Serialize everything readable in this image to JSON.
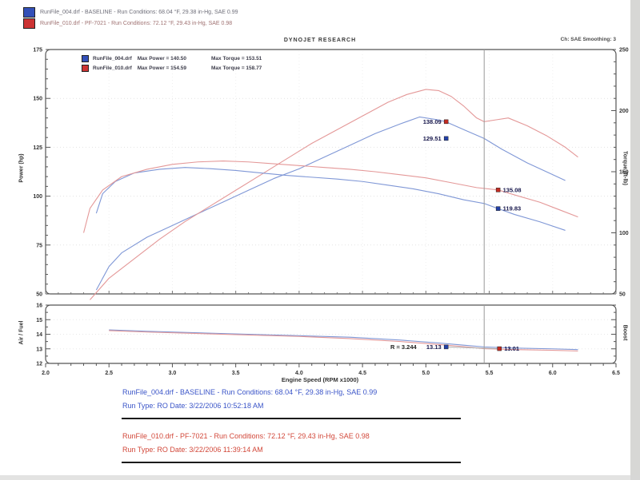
{
  "colors": {
    "blue_text": "#3b55c8",
    "red_text": "#d2483a",
    "blue_line": "#7f97d6",
    "red_line": "#e49898",
    "blue_marker": "#2340a8",
    "red_marker": "#c52b22",
    "cursor": "#999999",
    "frame": "#555555"
  },
  "header": {
    "runs": [
      {
        "swatch": "blue",
        "label": "RunFile_004.drf - BASELINE  -  Run Conditions: 68.04 °F, 29.38 in-Hg, SAE 0.99"
      },
      {
        "swatch": "red",
        "label": "RunFile_010.drf - PF-7021  -  Run Conditions: 72.12 °F, 29.43 in-Hg, SAE 0.98"
      }
    ],
    "smoothing": "Ch: SAE  Smoothing: 3"
  },
  "chart_data": [
    {
      "type": "line",
      "title": "DYNOJET RESEARCH",
      "xlabel": "Engine Speed (RPM x1000)",
      "xlim": [
        2.0,
        6.5
      ],
      "x_ticks": [
        "2.0",
        "2.5",
        "3.0",
        "3.5",
        "4.0",
        "4.5",
        "5.0",
        "5.5",
        "6.0",
        "6.5"
      ],
      "cursor_rpm": 5.46,
      "grid": "dotted",
      "left_axis": {
        "label": "Power (hp)",
        "lim": [
          50,
          175
        ],
        "ticks": [
          175,
          150,
          125,
          100,
          75,
          50
        ]
      },
      "right_axis": {
        "label": "Torque (ft-lb)",
        "lim": [
          50,
          250
        ],
        "ticks": [
          250,
          200,
          150,
          100,
          50
        ]
      },
      "legend": [
        {
          "swatch": "blue",
          "file": "RunFile_004.drf",
          "power": "Max Power = 140.50",
          "torque": "Max Torque = 153.51"
        },
        {
          "swatch": "red",
          "file": "RunFile_010.drf",
          "power": "Max Power = 154.59",
          "torque": "Max Torque = 158.77"
        }
      ],
      "series": [
        {
          "name": "RunFile_004.drf Power",
          "color": "blue",
          "axis": "left",
          "points": [
            [
              2.4,
              52
            ],
            [
              2.5,
              64
            ],
            [
              2.6,
              71
            ],
            [
              2.8,
              79
            ],
            [
              3.0,
              85
            ],
            [
              3.2,
              91
            ],
            [
              3.4,
              97
            ],
            [
              3.6,
              103
            ],
            [
              3.8,
              109
            ],
            [
              4.0,
              114
            ],
            [
              4.2,
              120
            ],
            [
              4.4,
              126
            ],
            [
              4.6,
              132
            ],
            [
              4.8,
              137
            ],
            [
              4.95,
              140.5
            ],
            [
              5.1,
              139
            ],
            [
              5.16,
              138
            ],
            [
              5.3,
              134
            ],
            [
              5.46,
              129.5
            ],
            [
              5.6,
              124
            ],
            [
              5.8,
              117
            ],
            [
              6.0,
              111
            ],
            [
              6.1,
              108
            ]
          ]
        },
        {
          "name": "RunFile_010.drf Power",
          "color": "red",
          "axis": "left",
          "points": [
            [
              2.35,
              47
            ],
            [
              2.5,
              58
            ],
            [
              2.7,
              68
            ],
            [
              2.9,
              78
            ],
            [
              3.1,
              87
            ],
            [
              3.3,
              95
            ],
            [
              3.5,
              103
            ],
            [
              3.7,
              111
            ],
            [
              3.9,
              119
            ],
            [
              4.1,
              127
            ],
            [
              4.3,
              134
            ],
            [
              4.5,
              141
            ],
            [
              4.7,
              148
            ],
            [
              4.85,
              152
            ],
            [
              5.0,
              154.6
            ],
            [
              5.1,
              154
            ],
            [
              5.2,
              151
            ],
            [
              5.3,
              146
            ],
            [
              5.4,
              140
            ],
            [
              5.46,
              138.1
            ],
            [
              5.55,
              139
            ],
            [
              5.65,
              140
            ],
            [
              5.8,
              136
            ],
            [
              5.95,
              131
            ],
            [
              6.1,
              125
            ],
            [
              6.2,
              120
            ]
          ]
        },
        {
          "name": "RunFile_004.drf Torque",
          "color": "blue",
          "axis": "right",
          "points": [
            [
              2.4,
              116
            ],
            [
              2.45,
              132
            ],
            [
              2.55,
              142
            ],
            [
              2.7,
              149
            ],
            [
              2.9,
              152
            ],
            [
              3.1,
              153.5
            ],
            [
              3.3,
              152.5
            ],
            [
              3.5,
              151
            ],
            [
              3.7,
              149
            ],
            [
              3.9,
              147
            ],
            [
              4.1,
              145.5
            ],
            [
              4.3,
              144
            ],
            [
              4.5,
              142
            ],
            [
              4.7,
              139
            ],
            [
              4.9,
              136
            ],
            [
              5.1,
              132
            ],
            [
              5.3,
              127
            ],
            [
              5.46,
              124
            ],
            [
              5.57,
              119.8
            ],
            [
              5.7,
              115
            ],
            [
              5.9,
              109
            ],
            [
              6.1,
              102
            ]
          ]
        },
        {
          "name": "RunFile_010.drf Torque",
          "color": "red",
          "axis": "right",
          "points": [
            [
              2.3,
              100
            ],
            [
              2.35,
              120
            ],
            [
              2.45,
              135
            ],
            [
              2.6,
              146
            ],
            [
              2.8,
              152
            ],
            [
              3.0,
              156
            ],
            [
              3.2,
              158
            ],
            [
              3.4,
              158.8
            ],
            [
              3.6,
              158
            ],
            [
              3.8,
              156.5
            ],
            [
              4.0,
              155
            ],
            [
              4.2,
              153.5
            ],
            [
              4.4,
              152
            ],
            [
              4.6,
              150
            ],
            [
              4.8,
              147.5
            ],
            [
              5.0,
              145
            ],
            [
              5.2,
              141
            ],
            [
              5.4,
              137
            ],
            [
              5.57,
              135.1
            ],
            [
              5.7,
              131
            ],
            [
              5.9,
              125
            ],
            [
              6.05,
              119
            ],
            [
              6.2,
              113
            ]
          ]
        }
      ],
      "point_labels": [
        {
          "text": "138.09",
          "series": "red",
          "axis": "power",
          "rpm": 5.16,
          "value": 138.09,
          "side": "left"
        },
        {
          "text": "129.51",
          "series": "blue",
          "axis": "power",
          "rpm": 5.16,
          "value": 129.51,
          "side": "left"
        },
        {
          "text": "135.08",
          "series": "red",
          "axis": "torque",
          "rpm": 5.57,
          "value": 135.08,
          "side": "right"
        },
        {
          "text": "119.83",
          "series": "blue",
          "axis": "torque",
          "rpm": 5.57,
          "value": 119.83,
          "side": "right"
        }
      ]
    },
    {
      "type": "line",
      "left_axis": {
        "label": "Air / Fuel",
        "lim": [
          12,
          16
        ],
        "ticks": [
          16,
          15,
          14,
          13,
          12
        ]
      },
      "right_axis": {
        "label": "Boost"
      },
      "series": [
        {
          "name": "RunFile_004.drf Air/Fuel",
          "color": "blue",
          "points": [
            [
              2.5,
              14.3
            ],
            [
              2.8,
              14.2
            ],
            [
              3.2,
              14.1
            ],
            [
              3.6,
              14.0
            ],
            [
              4.0,
              13.9
            ],
            [
              4.4,
              13.8
            ],
            [
              4.8,
              13.6
            ],
            [
              5.1,
              13.4
            ],
            [
              5.3,
              13.25
            ],
            [
              5.46,
              13.13
            ],
            [
              5.7,
              13.05
            ],
            [
              6.0,
              13.0
            ],
            [
              6.2,
              12.95
            ]
          ]
        },
        {
          "name": "RunFile_010.drf Air/Fuel",
          "color": "red",
          "points": [
            [
              2.5,
              14.25
            ],
            [
              2.8,
              14.15
            ],
            [
              3.2,
              14.05
            ],
            [
              3.6,
              13.95
            ],
            [
              4.0,
              13.85
            ],
            [
              4.4,
              13.7
            ],
            [
              4.8,
              13.5
            ],
            [
              5.1,
              13.3
            ],
            [
              5.3,
              13.15
            ],
            [
              5.46,
              13.01
            ],
            [
              5.7,
              12.95
            ],
            [
              6.0,
              12.9
            ],
            [
              6.2,
              12.85
            ]
          ]
        }
      ],
      "point_labels": [
        {
          "text": "13.13",
          "series": "blue",
          "rpm": 5.16,
          "value": 13.13,
          "side": "left"
        },
        {
          "text": "13.01",
          "series": "red",
          "rpm": 5.58,
          "value": 13.01,
          "side": "right"
        }
      ],
      "annotation": {
        "text": "R = 3.244",
        "rpm": 4.72,
        "value": 13.15
      }
    }
  ],
  "footer": {
    "blocks": [
      {
        "color": "blue",
        "line1": "RunFile_004.drf - BASELINE  -  Run Conditions: 68.04 °F, 29.38 in-Hg, SAE 0.99",
        "line2": "Run Type: RO  Date: 3/22/2006 10:52:18 AM"
      },
      {
        "color": "red",
        "line1": "RunFile_010.drf - PF-7021  -  Run Conditions: 72.12 °F, 29.43 in-Hg, SAE 0.98",
        "line2": "Run Type: RO  Date: 3/22/2006 11:39:14 AM"
      }
    ]
  }
}
